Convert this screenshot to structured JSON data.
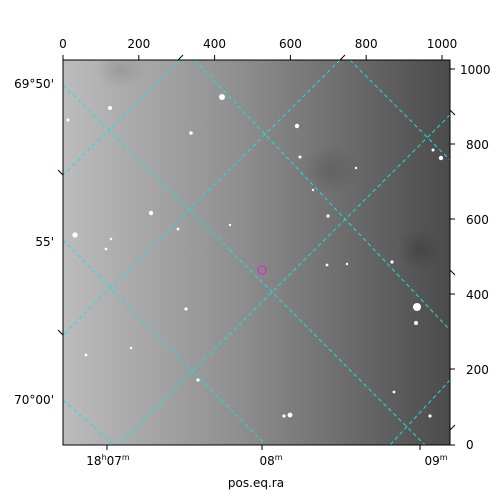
{
  "figure": {
    "xlabel": "pos.eq.ra",
    "colors": {
      "grid": "#22dddd",
      "marker": "#cc33cc",
      "frame": "#000000",
      "sky_light": "#bdbdbd",
      "sky_dark": "#4a4a4a"
    },
    "top_ticks": [
      "0",
      "200",
      "400",
      "600",
      "800",
      "1000"
    ],
    "right_ticks": [
      "1000",
      "800",
      "600",
      "400",
      "200",
      "0"
    ],
    "left_ticks": [
      "69°50'",
      "55'",
      "70°00'"
    ],
    "bottom_ticks": [
      {
        "main": "18",
        "h": "h",
        "mid": "07",
        "m": "m"
      },
      {
        "main": "08",
        "m": "m"
      },
      {
        "main": "09",
        "m": "m"
      }
    ]
  }
}
